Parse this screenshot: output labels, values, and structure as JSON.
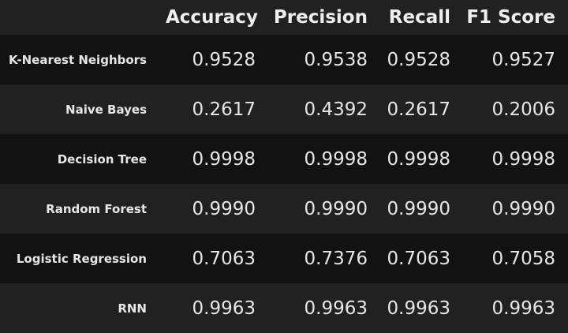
{
  "table": {
    "corner": "",
    "columns": [
      "Accuracy",
      "Precision",
      "Recall",
      "F1 Score"
    ],
    "rows": [
      {
        "label": "K-Nearest Neighbors",
        "values": [
          "0.9528",
          "0.9538",
          "0.9528",
          "0.9527"
        ]
      },
      {
        "label": "Naive Bayes",
        "values": [
          "0.2617",
          "0.4392",
          "0.2617",
          "0.2006"
        ]
      },
      {
        "label": "Decision Tree",
        "values": [
          "0.9998",
          "0.9998",
          "0.9998",
          "0.9998"
        ]
      },
      {
        "label": "Random Forest",
        "values": [
          "0.9990",
          "0.9990",
          "0.9990",
          "0.9990"
        ]
      },
      {
        "label": "Logistic Regression",
        "values": [
          "0.7063",
          "0.7376",
          "0.7063",
          "0.7058"
        ]
      },
      {
        "label": "RNN",
        "values": [
          "0.9963",
          "0.9963",
          "0.9963",
          "0.9963"
        ]
      }
    ]
  },
  "colors": {
    "background": "#212121",
    "row_stripe": "#121212",
    "text": "#e6e6e6"
  }
}
